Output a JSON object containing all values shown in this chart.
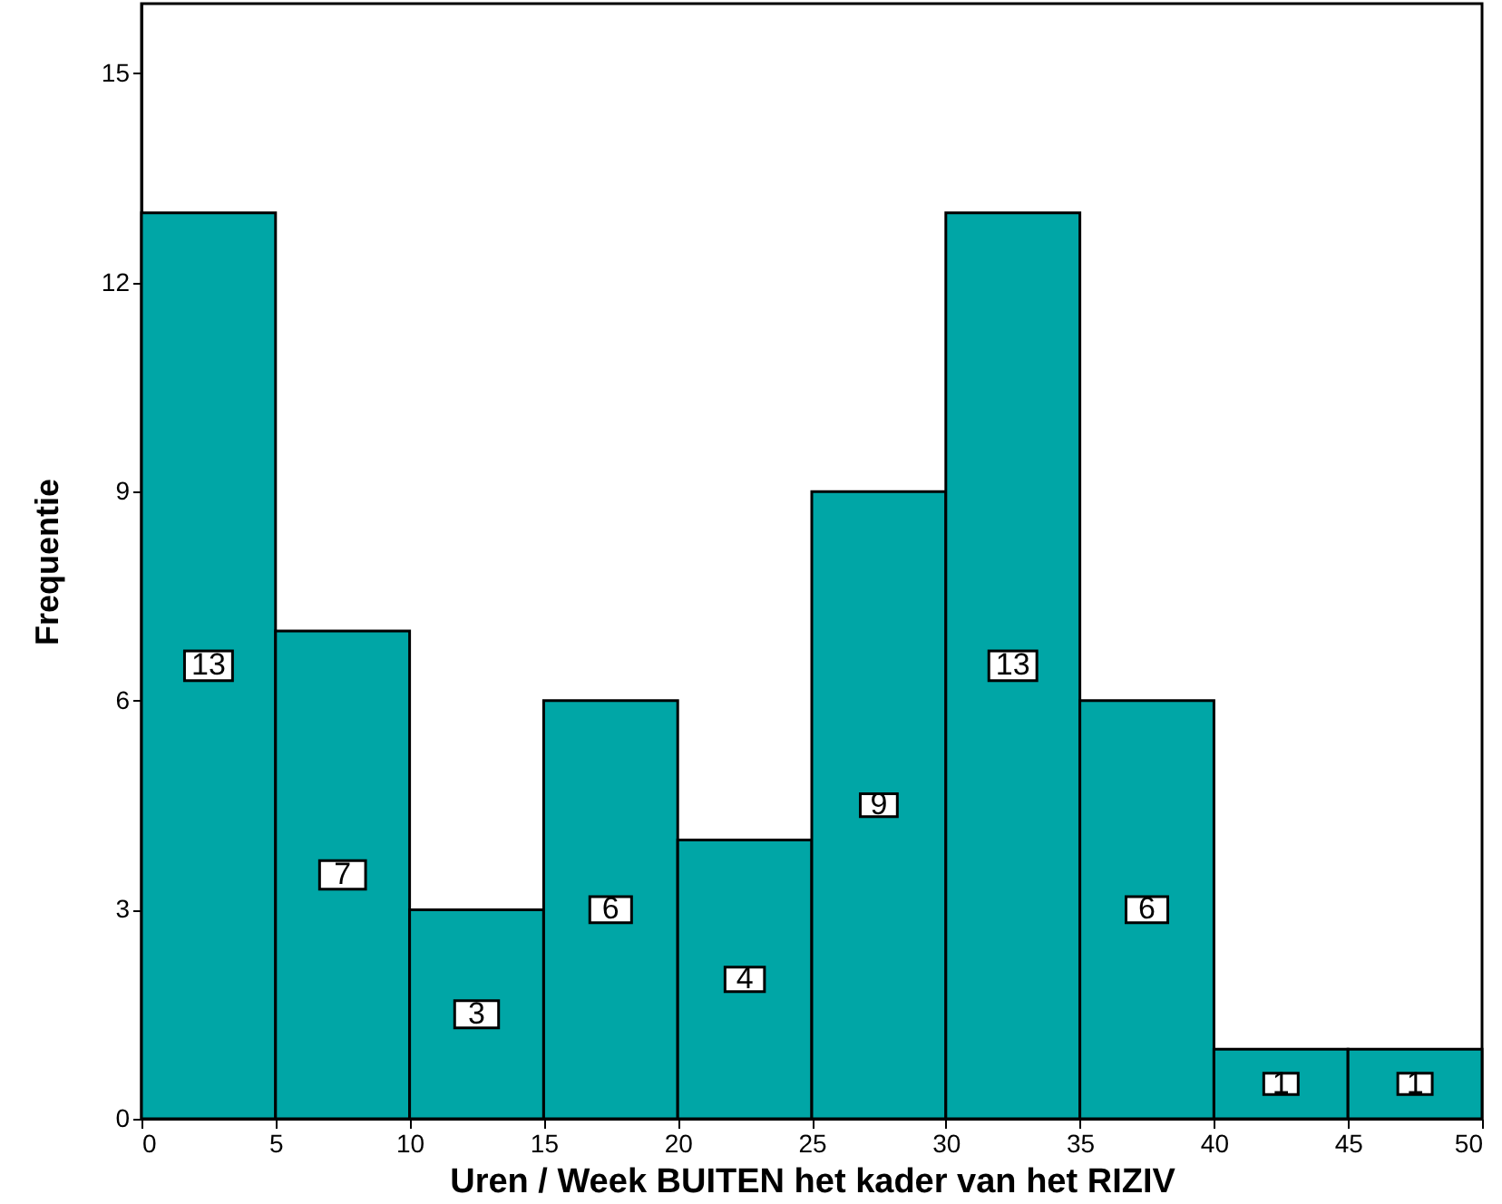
{
  "chart_data": {
    "type": "histogram",
    "xlabel": "Uren / Week BUITEN het kader van het RIZIV",
    "ylabel": "Frequentie",
    "bins": [
      0,
      5,
      10,
      15,
      20,
      25,
      30,
      35,
      40,
      45,
      50
    ],
    "values": [
      13,
      7,
      3,
      6,
      4,
      9,
      13,
      6,
      1,
      1
    ],
    "color": "#00a6a6",
    "xlim": [
      0,
      50
    ],
    "xticks": [
      0,
      5,
      10,
      15,
      20,
      25,
      30,
      35,
      40,
      45,
      50
    ],
    "ylim": [
      0,
      16
    ],
    "yticks": [
      0,
      3,
      6,
      9,
      12,
      15
    ],
    "data_labels": true,
    "grid": false
  }
}
